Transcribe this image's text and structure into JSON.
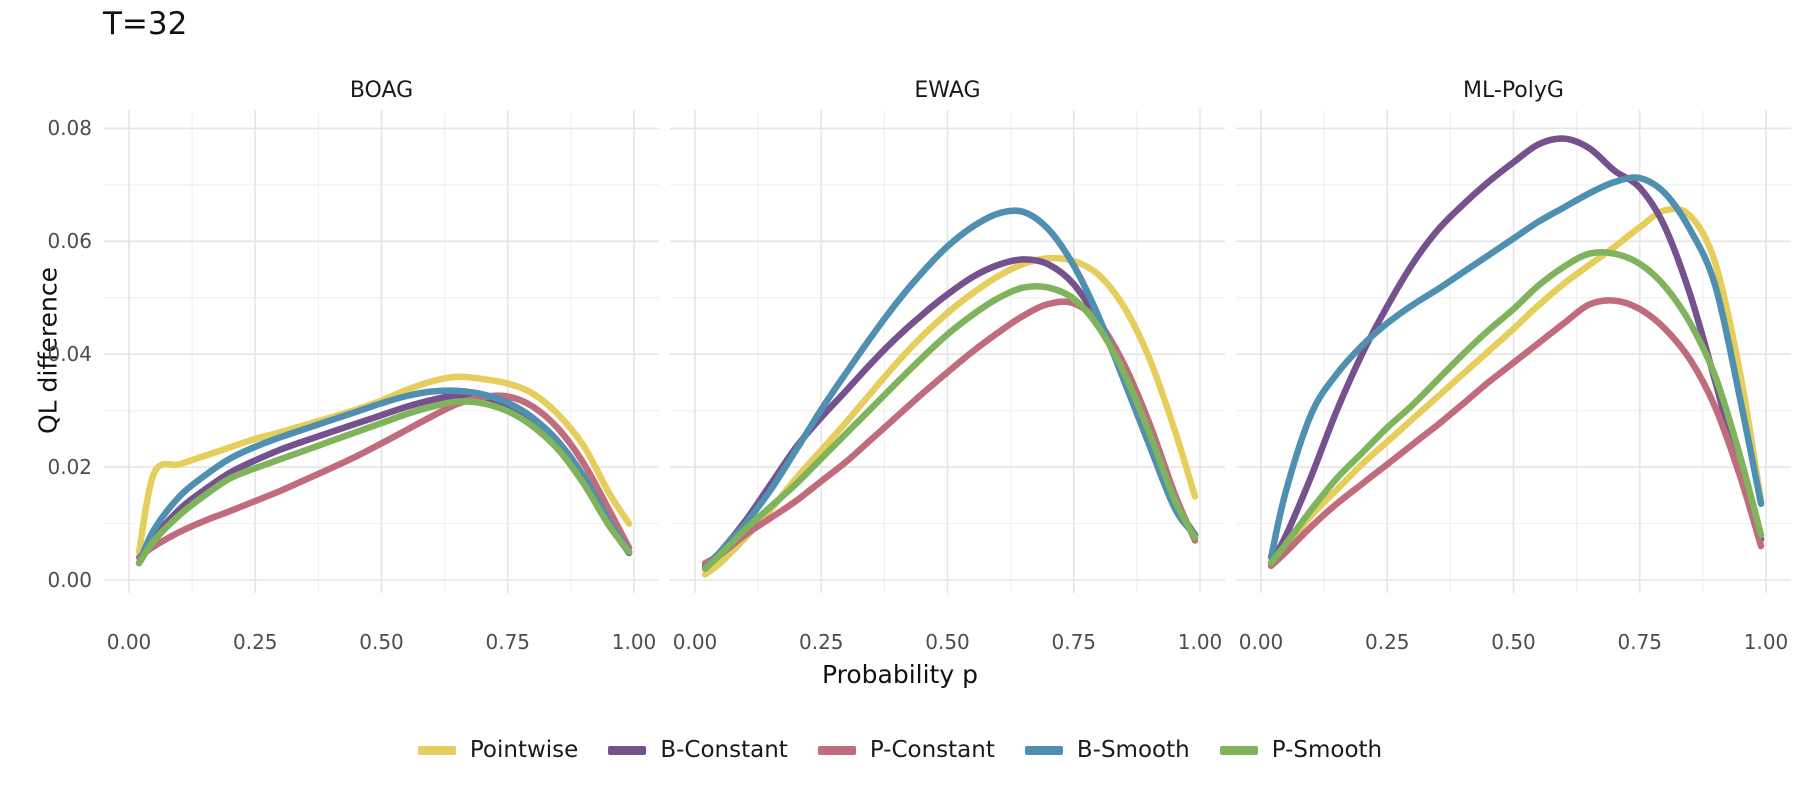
{
  "title": "T=32",
  "axes": {
    "x_label": "Probability p",
    "y_label": "QL difference",
    "x_tick_labels": [
      "0.00",
      "0.25",
      "0.50",
      "0.75",
      "1.00"
    ],
    "y_tick_labels": [
      "0.00",
      "0.02",
      "0.04",
      "0.06",
      "0.08"
    ]
  },
  "colors": {
    "Pointwise": "#e5ce5c",
    "B-Constant": "#75518d",
    "P-Constant": "#c06c7d",
    "B-Smooth": "#4f8fb0",
    "P-Smooth": "#7fb45d"
  },
  "grid_colors": {
    "major": "#e5e5e5",
    "minor": "#f1f1f1"
  },
  "legend": [
    "Pointwise",
    "B-Constant",
    "P-Constant",
    "B-Smooth",
    "P-Smooth"
  ],
  "chart_data": {
    "type": "line",
    "title": "T=32",
    "xlabel": "Probability p",
    "ylabel": "QL difference",
    "xlim": [
      0,
      1
    ],
    "ylim": [
      0,
      0.08
    ],
    "x_ticks": [
      0,
      0.25,
      0.5,
      0.75,
      1
    ],
    "x_minor_ticks": [
      0.125,
      0.375,
      0.625,
      0.875
    ],
    "y_ticks": [
      0,
      0.02,
      0.04,
      0.06,
      0.08
    ],
    "y_minor_ticks": [
      0.01,
      0.03,
      0.05,
      0.07
    ],
    "grid": "on",
    "legend_position": "bottom",
    "facets": [
      "BOAG",
      "EWAG",
      "ML-PolyG"
    ],
    "series_order": [
      "Pointwise",
      "B-Constant",
      "P-Constant",
      "B-Smooth",
      "P-Smooth"
    ],
    "x": [
      0.02,
      0.05,
      0.1,
      0.15,
      0.2,
      0.25,
      0.3,
      0.35,
      0.4,
      0.45,
      0.5,
      0.55,
      0.6,
      0.65,
      0.7,
      0.75,
      0.8,
      0.85,
      0.9,
      0.95,
      0.99
    ],
    "panels": [
      {
        "facet": "BOAG",
        "series": [
          {
            "name": "Pointwise",
            "values": [
              0.005,
              0.019,
              0.0205,
              0.022,
              0.0235,
              0.025,
              0.0262,
              0.0275,
              0.0288,
              0.0302,
              0.0318,
              0.0337,
              0.0352,
              0.036,
              0.0356,
              0.0348,
              0.033,
              0.0293,
              0.0238,
              0.0155,
              0.01
            ]
          },
          {
            "name": "B-Constant",
            "values": [
              0.003,
              0.0075,
              0.0125,
              0.016,
              0.019,
              0.0212,
              0.0231,
              0.0247,
              0.0262,
              0.0277,
              0.0292,
              0.0307,
              0.0319,
              0.0327,
              0.0325,
              0.0308,
              0.0278,
              0.0235,
              0.0175,
              0.01,
              0.0048
            ]
          },
          {
            "name": "P-Constant",
            "values": [
              0.004,
              0.006,
              0.0085,
              0.0105,
              0.0122,
              0.014,
              0.0158,
              0.0178,
              0.0198,
              0.0219,
              0.0242,
              0.0266,
              0.029,
              0.0312,
              0.0324,
              0.0325,
              0.0307,
              0.0268,
              0.0207,
              0.0125,
              0.0057
            ]
          },
          {
            "name": "B-Smooth",
            "values": [
              0.003,
              0.009,
              0.0148,
              0.0185,
              0.0215,
              0.0236,
              0.0253,
              0.0268,
              0.0283,
              0.0298,
              0.0313,
              0.0326,
              0.0334,
              0.0335,
              0.0329,
              0.0314,
              0.0287,
              0.0245,
              0.0184,
              0.0105,
              0.005
            ]
          },
          {
            "name": "P-Smooth",
            "values": [
              0.003,
              0.007,
              0.0115,
              0.015,
              0.018,
              0.0198,
              0.0214,
              0.023,
              0.0246,
              0.0262,
              0.0278,
              0.0294,
              0.0307,
              0.0316,
              0.0313,
              0.0299,
              0.0272,
              0.0231,
              0.0171,
              0.0097,
              0.005
            ]
          }
        ]
      },
      {
        "facet": "EWAG",
        "series": [
          {
            "name": "Pointwise",
            "values": [
              0.001,
              0.003,
              0.0075,
              0.0125,
              0.018,
              0.023,
              0.028,
              0.0333,
              0.0385,
              0.0432,
              0.0473,
              0.0508,
              0.0538,
              0.056,
              0.057,
              0.0565,
              0.054,
              0.0483,
              0.0392,
              0.0265,
              0.0148
            ]
          },
          {
            "name": "B-Constant",
            "values": [
              0.0025,
              0.005,
              0.0105,
              0.017,
              0.0235,
              0.0288,
              0.0336,
              0.0385,
              0.043,
              0.047,
              0.0506,
              0.0537,
              0.0558,
              0.0568,
              0.0559,
              0.0524,
              0.0455,
              0.0358,
              0.0248,
              0.0138,
              0.008
            ]
          },
          {
            "name": "P-Constant",
            "values": [
              0.003,
              0.0045,
              0.008,
              0.011,
              0.014,
              0.0175,
              0.021,
              0.025,
              0.029,
              0.033,
              0.0368,
              0.0405,
              0.0438,
              0.0468,
              0.0489,
              0.049,
              0.0456,
              0.0381,
              0.0277,
              0.0152,
              0.007
            ]
          },
          {
            "name": "B-Smooth",
            "values": [
              0.002,
              0.005,
              0.01,
              0.016,
              0.023,
              0.0302,
              0.0368,
              0.0432,
              0.0492,
              0.0545,
              0.0591,
              0.0626,
              0.0649,
              0.0652,
              0.0621,
              0.0557,
              0.0465,
              0.0352,
              0.0238,
              0.0127,
              0.008
            ]
          },
          {
            "name": "P-Smooth",
            "values": [
              0.002,
              0.0045,
              0.009,
              0.013,
              0.017,
              0.0215,
              0.026,
              0.0305,
              0.035,
              0.0394,
              0.0435,
              0.047,
              0.0499,
              0.0518,
              0.0518,
              0.0498,
              0.0447,
              0.0366,
              0.026,
              0.0142,
              0.0075
            ]
          }
        ]
      },
      {
        "facet": "ML-PolyG",
        "series": [
          {
            "name": "Pointwise",
            "values": [
              0.003,
              0.006,
              0.0115,
              0.016,
              0.0205,
              0.0245,
              0.0285,
              0.0325,
              0.0365,
              0.0405,
              0.0445,
              0.0487,
              0.0525,
              0.0558,
              0.059,
              0.0625,
              0.0655,
              0.0645,
              0.056,
              0.036,
              0.014
            ]
          },
          {
            "name": "B-Constant",
            "values": [
              0.003,
              0.008,
              0.0185,
              0.03,
              0.04,
              0.0485,
              0.056,
              0.062,
              0.0665,
              0.0705,
              0.074,
              0.0772,
              0.0782,
              0.0765,
              0.0725,
              0.0695,
              0.0625,
              0.0505,
              0.035,
              0.0185,
              0.0072
            ]
          },
          {
            "name": "P-Constant",
            "values": [
              0.0025,
              0.005,
              0.0095,
              0.0135,
              0.017,
              0.0205,
              0.024,
              0.0275,
              0.0312,
              0.035,
              0.0385,
              0.042,
              0.0455,
              0.0488,
              0.0495,
              0.048,
              0.0445,
              0.039,
              0.0305,
              0.018,
              0.006
            ]
          },
          {
            "name": "B-Smooth",
            "values": [
              0.004,
              0.016,
              0.0295,
              0.0365,
              0.0415,
              0.0455,
              0.0487,
              0.0515,
              0.0545,
              0.0575,
              0.0605,
              0.0635,
              0.066,
              0.0685,
              0.0705,
              0.0712,
              0.0685,
              0.062,
              0.052,
              0.0315,
              0.0135
            ]
          },
          {
            "name": "P-Smooth",
            "values": [
              0.003,
              0.0065,
              0.0125,
              0.018,
              0.0225,
              0.027,
              0.031,
              0.0355,
              0.04,
              0.0442,
              0.048,
              0.0522,
              0.0555,
              0.0578,
              0.0578,
              0.056,
              0.052,
              0.0455,
              0.036,
              0.0215,
              0.008
            ]
          }
        ]
      }
    ]
  }
}
